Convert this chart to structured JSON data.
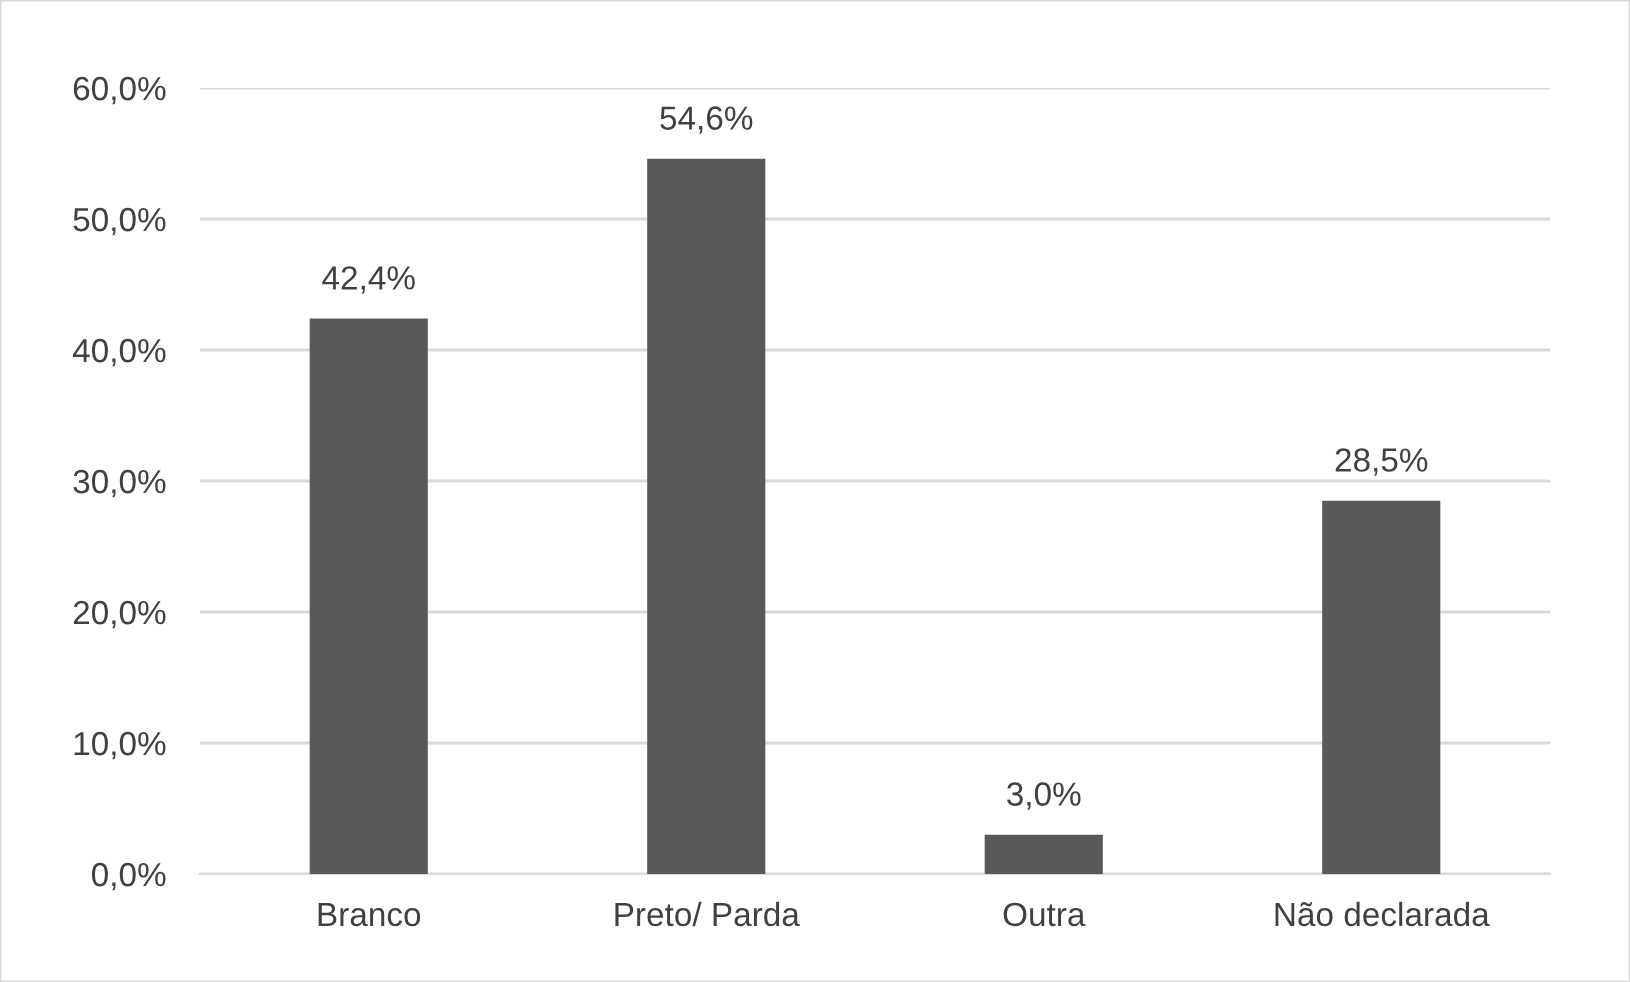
{
  "chart_data": {
    "type": "bar",
    "categories": [
      "Branco",
      "Preto/ Parda",
      "Outra",
      "Não declarada"
    ],
    "values": [
      42.4,
      54.6,
      3.0,
      28.5
    ],
    "value_labels": [
      "42,4%",
      "54,6%",
      "3,0%",
      "28,5%"
    ],
    "color": "#595959",
    "ylim": [
      0,
      60
    ],
    "yticks": [
      {
        "value": 0,
        "label": "0,0%"
      },
      {
        "value": 10,
        "label": "10,0%"
      },
      {
        "value": 20,
        "label": "20,0%"
      },
      {
        "value": 30,
        "label": "30,0%"
      },
      {
        "value": 40,
        "label": "40,0%"
      },
      {
        "value": 50,
        "label": "50,0%"
      },
      {
        "value": 60,
        "label": "60,0%"
      }
    ],
    "grid": "y"
  }
}
